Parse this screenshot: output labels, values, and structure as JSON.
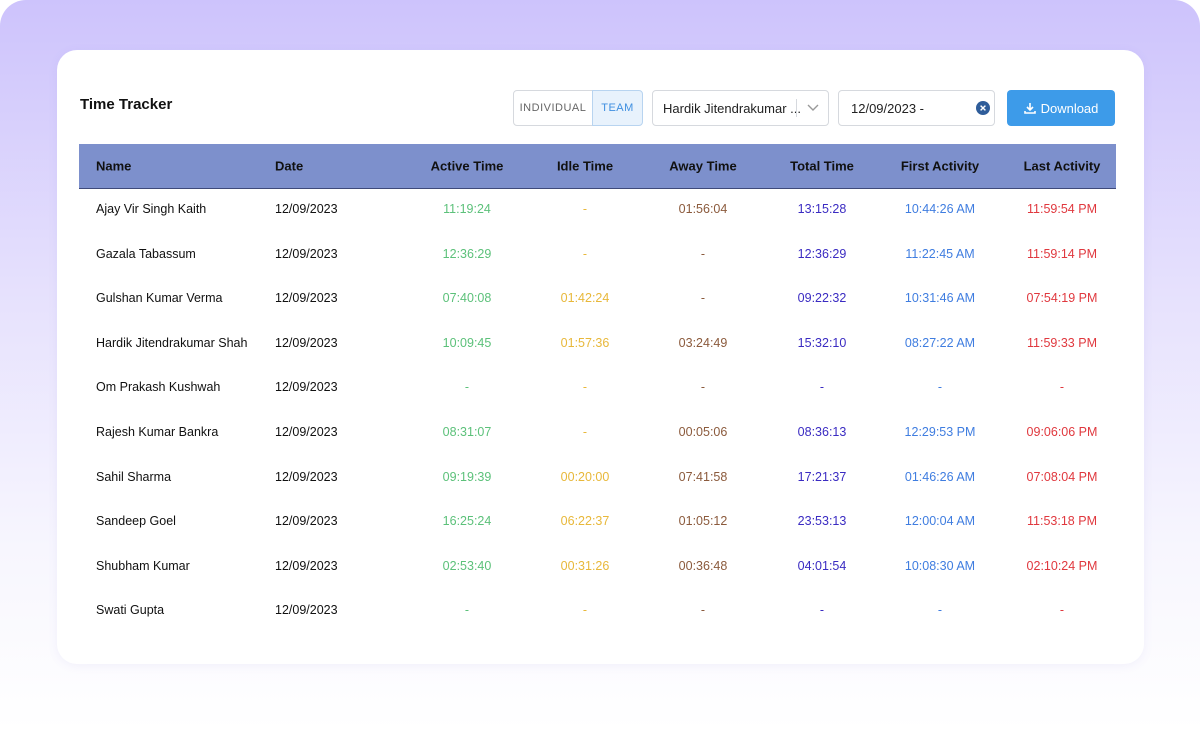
{
  "header": {
    "title": "Time Tracker"
  },
  "controls": {
    "toggle": [
      "INDIVIDUAL",
      "TEAM"
    ],
    "user_select": "Hardik Jitendrakumar ...",
    "date_range": "12/09/2023 -",
    "download": "Download"
  },
  "table": {
    "columns": [
      "Name",
      "Date",
      "Active Time",
      "Idle Time",
      "Away Time",
      "Total Time",
      "First Activity",
      "Last Activity"
    ],
    "rows": [
      [
        "Ajay Vir Singh Kaith",
        "12/09/2023",
        "11:19:24",
        "-",
        "01:56:04",
        "13:15:28",
        "10:44:26 AM",
        "11:59:54 PM"
      ],
      [
        "Gazala Tabassum",
        "12/09/2023",
        "12:36:29",
        "-",
        "-",
        "12:36:29",
        "11:22:45 AM",
        "11:59:14 PM"
      ],
      [
        "Gulshan Kumar Verma",
        "12/09/2023",
        "07:40:08",
        "01:42:24",
        "-",
        "09:22:32",
        "10:31:46 AM",
        "07:54:19 PM"
      ],
      [
        "Hardik Jitendrakumar Shah",
        "12/09/2023",
        "10:09:45",
        "01:57:36",
        "03:24:49",
        "15:32:10",
        "08:27:22 AM",
        "11:59:33 PM"
      ],
      [
        "Om Prakash Kushwah",
        "12/09/2023",
        "-",
        "-",
        "-",
        "-",
        "-",
        "-"
      ],
      [
        "Rajesh Kumar Bankra",
        "12/09/2023",
        "08:31:07",
        "-",
        "00:05:06",
        "08:36:13",
        "12:29:53 PM",
        "09:06:06 PM"
      ],
      [
        "Sahil Sharma",
        "12/09/2023",
        "09:19:39",
        "00:20:00",
        "07:41:58",
        "17:21:37",
        "01:46:26 AM",
        "07:08:04 PM"
      ],
      [
        "Sandeep Goel",
        "12/09/2023",
        "16:25:24",
        "06:22:37",
        "01:05:12",
        "23:53:13",
        "12:00:04 AM",
        "11:53:18 PM"
      ],
      [
        "Shubham Kumar",
        "12/09/2023",
        "02:53:40",
        "00:31:26",
        "00:36:48",
        "04:01:54",
        "10:08:30 AM",
        "02:10:24 PM"
      ],
      [
        "Swati Gupta",
        "12/09/2023",
        "-",
        "-",
        "-",
        "-",
        "-",
        "-"
      ]
    ]
  }
}
